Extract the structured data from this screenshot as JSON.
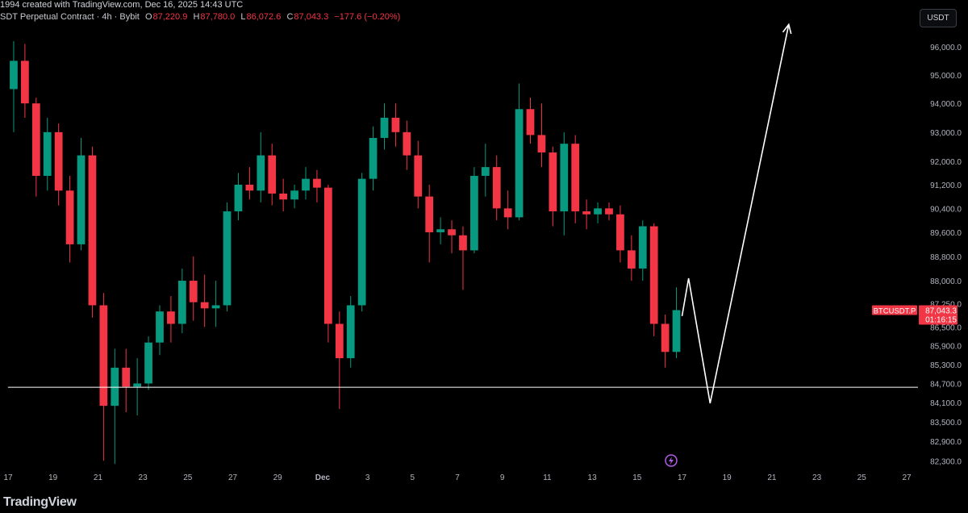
{
  "header": {
    "credit": "1994 created with TradingView.com, Dec 16, 2025 14:43 UTC",
    "symbol_desc": "SDT Perpetual Contract · 4h · Bybit",
    "open_label": "O",
    "open": "87,220.9",
    "high_label": "H",
    "high": "87,780.0",
    "low_label": "L",
    "low": "86,072.6",
    "close_label": "C",
    "close": "87,043.3",
    "change": "−177.6 (−0.20%)"
  },
  "currency_button": "USDT",
  "price_tag": {
    "symbol": "BTCUSDT.P",
    "price": "87,043.3",
    "countdown": "01:16:15"
  },
  "footer": {
    "logo": "TradingView"
  },
  "colors": {
    "up": "#089981",
    "down": "#f23645",
    "background": "#000000",
    "drawing": "#ffffff"
  },
  "icons": {
    "lightning": "lightning-icon"
  },
  "chart_data": {
    "type": "candlestick",
    "y_scale": "log",
    "ylim": [
      82000,
      96700
    ],
    "grid": false,
    "y_ticks": [
      "96,000.0",
      "95,000.0",
      "94,000.0",
      "93,000.0",
      "92,000.0",
      "91,200.0",
      "90,400.0",
      "89,600.0",
      "88,800.0",
      "88,000.0",
      "87,250.0",
      "86,500.0",
      "85,900.0",
      "85,300.0",
      "84,700.0",
      "84,100.0",
      "83,500.0",
      "82,900.0",
      "82,300.0"
    ],
    "x_ticks": [
      {
        "label": "17",
        "date": "2025-11-17"
      },
      {
        "label": "19",
        "date": "2025-11-19"
      },
      {
        "label": "21",
        "date": "2025-11-21"
      },
      {
        "label": "23",
        "date": "2025-11-23"
      },
      {
        "label": "25",
        "date": "2025-11-25"
      },
      {
        "label": "27",
        "date": "2025-11-27"
      },
      {
        "label": "29",
        "date": "2025-11-29"
      },
      {
        "label": "Dec",
        "date": "2025-12-01"
      },
      {
        "label": "3",
        "date": "2025-12-03"
      },
      {
        "label": "5",
        "date": "2025-12-05"
      },
      {
        "label": "7",
        "date": "2025-12-07"
      },
      {
        "label": "9",
        "date": "2025-12-09"
      },
      {
        "label": "11",
        "date": "2025-12-11"
      },
      {
        "label": "13",
        "date": "2025-12-13"
      },
      {
        "label": "15",
        "date": "2025-12-15"
      },
      {
        "label": "17",
        "date": "2025-12-17"
      },
      {
        "label": "19",
        "date": "2025-12-19"
      },
      {
        "label": "21",
        "date": "2025-12-21"
      },
      {
        "label": "23",
        "date": "2025-12-23"
      },
      {
        "label": "25",
        "date": "2025-12-25"
      },
      {
        "label": "27",
        "date": "2025-12-27"
      }
    ],
    "candle_start": "2025-11-17T00:00",
    "candle_hours": 12,
    "candles_ohlc": [
      [
        94500,
        96200,
        93000,
        95500
      ],
      [
        95500,
        96100,
        93500,
        94000
      ],
      [
        94000,
        94200,
        90800,
        91500
      ],
      [
        91500,
        93500,
        91000,
        93000
      ],
      [
        93000,
        93300,
        90500,
        91000
      ],
      [
        91000,
        91500,
        88600,
        89200
      ],
      [
        89200,
        92800,
        89000,
        92200
      ],
      [
        92200,
        92500,
        86800,
        87200
      ],
      [
        87200,
        87600,
        82300,
        84000
      ],
      [
        84000,
        85800,
        82200,
        85200
      ],
      [
        85200,
        85800,
        83800,
        84600
      ],
      [
        84600,
        85500,
        83700,
        84700
      ],
      [
        84700,
        86200,
        84500,
        86000
      ],
      [
        86000,
        87200,
        85600,
        87000
      ],
      [
        87000,
        87500,
        86000,
        86600
      ],
      [
        86600,
        88400,
        86300,
        88000
      ],
      [
        88000,
        88800,
        86700,
        87300
      ],
      [
        87300,
        88200,
        86500,
        87100
      ],
      [
        87100,
        88000,
        86500,
        87200
      ],
      [
        87200,
        90600,
        87000,
        90300
      ],
      [
        90300,
        91600,
        90000,
        91200
      ],
      [
        91200,
        91800,
        90700,
        91000
      ],
      [
        91000,
        93000,
        90600,
        92200
      ],
      [
        92200,
        92600,
        90500,
        90900
      ],
      [
        90900,
        91400,
        90300,
        90700
      ],
      [
        90700,
        91200,
        90400,
        91000
      ],
      [
        91000,
        91800,
        90700,
        91400
      ],
      [
        91400,
        91700,
        90600,
        91100
      ],
      [
        91100,
        91200,
        86000,
        86600
      ],
      [
        86600,
        87000,
        83900,
        85500
      ],
      [
        85500,
        87500,
        85200,
        87200
      ],
      [
        87200,
        91600,
        87000,
        91400
      ],
      [
        91400,
        93200,
        91000,
        92800
      ],
      [
        92800,
        94000,
        92400,
        93500
      ],
      [
        93500,
        94000,
        92500,
        93000
      ],
      [
        93000,
        93400,
        91700,
        92200
      ],
      [
        92200,
        92700,
        90400,
        90800
      ],
      [
        90800,
        91200,
        88600,
        89600
      ],
      [
        89600,
        90100,
        89200,
        89700
      ],
      [
        89700,
        90000,
        88900,
        89500
      ],
      [
        89500,
        89800,
        87700,
        89000
      ],
      [
        89000,
        91800,
        88900,
        91500
      ],
      [
        91500,
        92600,
        90800,
        91800
      ],
      [
        91800,
        92200,
        90000,
        90400
      ],
      [
        90400,
        91000,
        89700,
        90100
      ],
      [
        90100,
        94700,
        90000,
        93800
      ],
      [
        93800,
        94200,
        92600,
        92900
      ],
      [
        92900,
        94000,
        91800,
        92300
      ],
      [
        92300,
        92500,
        89800,
        90300
      ],
      [
        90300,
        93000,
        89500,
        92600
      ],
      [
        92600,
        92900,
        89900,
        90300
      ],
      [
        90300,
        90700,
        89700,
        90200
      ],
      [
        90200,
        90600,
        89900,
        90400
      ],
      [
        90400,
        90600,
        90000,
        90200
      ],
      [
        90200,
        90500,
        88600,
        89000
      ],
      [
        89000,
        89500,
        88000,
        88400
      ],
      [
        88400,
        90000,
        88000,
        89800
      ],
      [
        89800,
        89900,
        86200,
        86600
      ],
      [
        86600,
        86900,
        85200,
        85700
      ],
      [
        85700,
        87780,
        85500,
        87043.3
      ]
    ],
    "horizontal_line": {
      "price": 84580,
      "from": "2025-11-18T00:00"
    },
    "projection_path": [
      {
        "date": "2025-12-17T00:00",
        "price": 86850
      },
      {
        "date": "2025-12-17T07:00",
        "price": 88080
      },
      {
        "date": "2025-12-18T06:00",
        "price": 84080
      },
      {
        "date": "2025-12-21T18:00",
        "price": 96800
      }
    ]
  }
}
